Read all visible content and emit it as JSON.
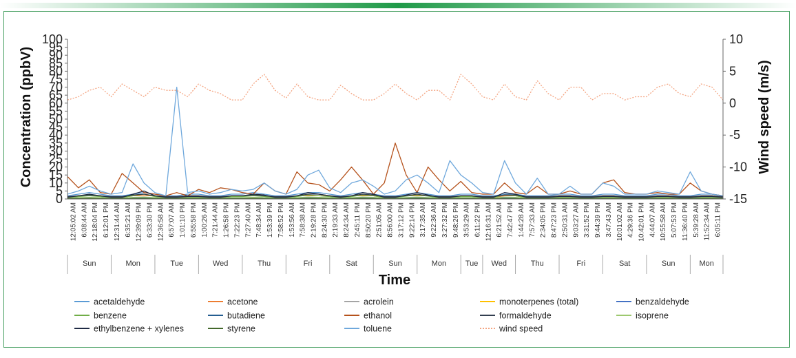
{
  "colors": {
    "frame": "#49a163",
    "bar_green": "#1f9a48",
    "acetaldehyde": "#5b9bd5",
    "acetone": "#ed7d31",
    "acrolein": "#a5a5a5",
    "monoterpenes": "#ffc000",
    "benzaldehyde": "#4472c4",
    "benzene": "#70ad47",
    "butadiene": "#255e91",
    "ethanol": "#b5521c",
    "formaldehyde": "#333f50",
    "isoprene": "#9dc86f",
    "ethylbenzene_xylenes": "#1f2a44",
    "styrene": "#43682b",
    "toluene": "#6fa8dc",
    "wind_speed": "#f4a582"
  },
  "chart_data": {
    "type": "line",
    "xlabel": "Time",
    "ylabel_left": "Concentration (ppbV)",
    "ylabel_right": "Wind speed (m/s)",
    "ylim_left": [
      0,
      100
    ],
    "ylim_right": [
      -15,
      10
    ],
    "yticks_left": [
      "0",
      "5",
      "10",
      "15",
      "20",
      "25",
      "30",
      "35",
      "40",
      "45",
      "50",
      "55",
      "60",
      "65",
      "70",
      "75",
      "80",
      "85",
      "90",
      "95",
      "100"
    ],
    "yticks_right": [
      "-15",
      "-10",
      "-5",
      "0",
      "5",
      "10"
    ],
    "x_tick_labels": [
      "12:05:02 AM",
      "6:08:44 AM",
      "12:18:04 PM",
      "6:12:01 PM",
      "12:31:44 AM",
      "6:35:21 AM",
      "12:39:09 PM",
      "6:33:30 PM",
      "12:36:58 AM",
      "6:57:07 AM",
      "1:01:10 PM",
      "6:55:58 PM",
      "1:00:26 AM",
      "7:21:44 AM",
      "1:26:58 PM",
      "7:22:23 PM",
      "7:27:40 AM",
      "7:48:34 AM",
      "1:53:39 PM",
      "7:58:52 PM",
      "1:53:56 AM",
      "7:58:38 AM",
      "2:19:28 PM",
      "8:24:30 PM",
      "2:19:33 AM",
      "8:24:34 AM",
      "2:45:11 PM",
      "8:50:20 PM",
      "2:51:05 AM",
      "8:56:00 AM",
      "3:17:12 PM",
      "9:22:14 PM",
      "3:17:35 AM",
      "9:22:36 AM",
      "3:27:32 PM",
      "9:48:26 PM",
      "3:53:29 AM",
      "6:11:22 PM",
      "12:16:31 AM",
      "6:21:52 AM",
      "7:42:47 PM",
      "1:44:28 AM",
      "7:57:33 AM",
      "2:34:05 PM",
      "8:47:23 PM",
      "2:50:31 AM",
      "9:03:27 AM",
      "3:31:52 PM",
      "9:44:39 PM",
      "3:47:43 AM",
      "10:01:02 AM",
      "4:29:36 PM",
      "10:42:01 PM",
      "4:44:07 AM",
      "10:55:58 AM",
      "5:07:53 PM",
      "11:36:40 PM",
      "5:39:28 AM",
      "11:52:34 AM",
      "6:05:11 PM"
    ],
    "day_labels": [
      "Sun",
      "Mon",
      "Tue",
      "Wed",
      "Thu",
      "Fri",
      "Sat",
      "Sun",
      "Mon",
      "Tue",
      "Wed",
      "Thu",
      "Fri",
      "Sat",
      "Sun",
      "Mon"
    ],
    "day_boundaries": [
      0,
      4,
      8,
      12,
      16,
      20,
      24,
      28,
      32,
      36,
      38,
      41,
      45,
      49,
      53,
      57,
      60
    ],
    "series": [
      {
        "name": "acetaldehyde",
        "color_key": "acetaldehyde",
        "values": [
          2,
          3,
          4,
          3,
          2,
          2,
          3,
          4,
          3,
          2,
          2,
          3,
          3,
          2,
          2,
          3,
          3,
          4,
          3,
          2,
          2,
          3,
          4,
          4,
          3,
          2,
          3,
          4,
          3,
          2,
          2,
          3,
          4,
          3,
          2,
          2,
          3,
          3,
          2,
          2,
          3,
          3,
          2,
          2,
          2,
          3,
          3,
          2,
          2,
          3,
          3,
          2,
          2,
          2,
          3,
          3,
          2,
          2,
          3,
          3,
          2
        ]
      },
      {
        "name": "acetone",
        "color_key": "acetone",
        "values": [
          1,
          2,
          2,
          2,
          1,
          1,
          2,
          2,
          2,
          1,
          1,
          2,
          2,
          1,
          1,
          2,
          2,
          2,
          2,
          1,
          1,
          2,
          2,
          2,
          2,
          1,
          2,
          2,
          2,
          1,
          1,
          2,
          2,
          2,
          1,
          1,
          2,
          2,
          1,
          1,
          2,
          2,
          1,
          1,
          1,
          2,
          2,
          1,
          1,
          2,
          2,
          1,
          1,
          1,
          2,
          2,
          1,
          1,
          2,
          2,
          1
        ]
      },
      {
        "name": "acrolein",
        "color_key": "acrolein",
        "values": [
          0.5,
          0.6,
          0.7,
          0.6,
          0.5,
          0.5,
          0.6,
          0.7,
          0.6,
          0.5,
          0.5,
          0.6,
          0.6,
          0.5,
          0.5,
          0.6,
          0.6,
          0.7,
          0.6,
          0.5,
          0.5,
          0.6,
          0.7,
          0.7,
          0.6,
          0.5,
          0.6,
          0.7,
          0.6,
          0.5,
          0.5,
          0.6,
          0.7,
          0.6,
          0.5,
          0.5,
          0.6,
          0.6,
          0.5,
          0.5,
          0.6,
          0.6,
          0.5,
          0.5,
          0.5,
          0.6,
          0.6,
          0.5,
          0.5,
          0.6,
          0.6,
          0.5,
          0.5,
          0.5,
          0.6,
          0.6,
          0.5,
          0.5,
          0.6,
          0.6,
          0.5
        ]
      },
      {
        "name": "monoterpenes (total)",
        "color_key": "monoterpenes",
        "values": [
          0.3,
          0.3,
          0.4,
          0.3,
          0.3,
          0.3,
          0.3,
          0.4,
          0.3,
          0.3,
          0.3,
          0.3,
          0.3,
          0.3,
          0.3,
          0.3,
          0.3,
          0.4,
          0.3,
          0.3,
          0.3,
          0.3,
          0.4,
          0.4,
          0.3,
          0.3,
          0.3,
          0.4,
          0.3,
          0.3,
          0.3,
          0.3,
          0.4,
          0.3,
          0.3,
          0.3,
          0.3,
          0.3,
          0.3,
          0.3,
          0.3,
          0.3,
          0.3,
          0.3,
          0.3,
          0.3,
          0.3,
          0.3,
          0.3,
          0.3,
          0.3,
          0.3,
          0.3,
          0.3,
          0.3,
          0.3,
          0.3,
          0.3,
          0.3,
          0.3,
          0.3
        ]
      },
      {
        "name": "benzaldehyde",
        "color_key": "benzaldehyde",
        "values": [
          0.6,
          0.7,
          0.9,
          0.7,
          0.6,
          0.6,
          0.8,
          0.9,
          0.7,
          0.6,
          0.6,
          0.7,
          0.7,
          0.6,
          0.6,
          0.7,
          0.7,
          0.9,
          0.8,
          0.6,
          0.6,
          0.7,
          0.9,
          0.9,
          0.7,
          0.6,
          0.7,
          0.9,
          0.8,
          0.6,
          0.6,
          0.7,
          0.9,
          0.7,
          0.6,
          0.6,
          0.7,
          0.7,
          0.6,
          0.6,
          0.7,
          0.7,
          0.6,
          0.6,
          0.6,
          0.7,
          0.7,
          0.6,
          0.6,
          0.7,
          0.7,
          0.6,
          0.6,
          0.6,
          0.7,
          0.7,
          0.6,
          0.6,
          0.7,
          0.7,
          0.6
        ]
      },
      {
        "name": "benzene",
        "color_key": "benzene",
        "values": [
          0.8,
          1.5,
          2,
          1.5,
          0.8,
          1,
          2,
          3,
          1.5,
          0.8,
          0.8,
          1.2,
          1.2,
          0.8,
          0.8,
          1.5,
          1.5,
          2,
          1.6,
          0.8,
          0.8,
          1.5,
          2.5,
          2,
          1.5,
          0.8,
          1.5,
          2.5,
          2,
          0.8,
          1,
          1.8,
          2.5,
          1.8,
          0.8,
          0.8,
          1.5,
          1.5,
          0.8,
          1,
          2.5,
          2,
          0.8,
          0.8,
          0.8,
          1.2,
          1.2,
          0.8,
          0.8,
          1.2,
          1.2,
          0.8,
          0.8,
          0.8,
          1.2,
          1.2,
          0.8,
          0.8,
          1.2,
          1.2,
          0.8
        ]
      },
      {
        "name": "butadiene",
        "color_key": "butadiene",
        "values": [
          0.3,
          0.4,
          0.5,
          0.4,
          0.3,
          0.3,
          0.4,
          0.5,
          0.4,
          0.3,
          0.3,
          0.4,
          0.4,
          0.3,
          0.3,
          0.4,
          0.4,
          0.5,
          0.4,
          0.3,
          0.3,
          0.4,
          0.5,
          0.5,
          0.4,
          0.3,
          0.4,
          0.5,
          0.4,
          0.3,
          0.3,
          0.4,
          0.5,
          0.4,
          0.3,
          0.3,
          0.4,
          0.4,
          0.3,
          0.3,
          0.4,
          0.4,
          0.3,
          0.3,
          0.3,
          0.4,
          0.4,
          0.3,
          0.3,
          0.4,
          0.4,
          0.3,
          0.3,
          0.3,
          0.4,
          0.4,
          0.3,
          0.3,
          0.4,
          0.4,
          0.3
        ]
      },
      {
        "name": "ethanol",
        "color_key": "ethanol",
        "values": [
          14,
          7,
          12,
          4,
          3,
          16,
          10,
          4,
          3,
          2,
          4,
          2,
          6,
          4,
          7,
          6,
          4,
          3,
          10,
          5,
          3,
          17,
          10,
          9,
          5,
          12,
          20,
          12,
          3,
          10,
          35,
          15,
          4,
          20,
          12,
          5,
          11,
          4,
          3,
          3,
          10,
          4,
          3,
          8,
          3,
          3,
          5,
          3,
          3,
          10,
          12,
          4,
          3,
          3,
          4,
          3,
          3,
          10,
          5,
          3,
          2
        ]
      },
      {
        "name": "formaldehyde",
        "color_key": "formaldehyde",
        "values": [
          1.5,
          2,
          2.5,
          2,
          1.5,
          1.5,
          2.5,
          3,
          2,
          1.5,
          1.5,
          2,
          2,
          1.5,
          1.5,
          2,
          2,
          2.5,
          2,
          1.5,
          1.5,
          2,
          3,
          3,
          2,
          1.5,
          2,
          3,
          2.5,
          1.5,
          1.5,
          2,
          3,
          2,
          1.5,
          1.5,
          2,
          2,
          1.5,
          1.5,
          2.5,
          2.5,
          1.5,
          1.5,
          1.5,
          2,
          2,
          1.5,
          1.5,
          2,
          2,
          1.5,
          1.5,
          1.5,
          2,
          2,
          1.5,
          1.5,
          2,
          2,
          1.5
        ]
      },
      {
        "name": "isoprene",
        "color_key": "isoprene",
        "values": [
          0.5,
          0.8,
          1,
          0.8,
          0.5,
          0.5,
          1,
          1.2,
          0.8,
          0.5,
          0.5,
          0.7,
          0.7,
          0.5,
          0.5,
          0.8,
          0.8,
          1,
          0.8,
          0.5,
          0.5,
          0.8,
          1.2,
          1,
          0.8,
          0.5,
          0.8,
          1.2,
          1,
          0.5,
          0.5,
          0.9,
          1.2,
          0.9,
          0.5,
          0.5,
          0.8,
          0.8,
          0.5,
          0.5,
          1.2,
          1,
          0.5,
          0.5,
          0.5,
          0.7,
          0.7,
          0.5,
          0.5,
          0.7,
          0.7,
          0.5,
          0.5,
          0.5,
          0.7,
          0.7,
          0.5,
          0.5,
          0.7,
          0.7,
          0.5
        ]
      },
      {
        "name": "ethylbenzene + xylenes",
        "color_key": "ethylbenzene_xylenes",
        "values": [
          1,
          2,
          3,
          2,
          1,
          1,
          3,
          5,
          2,
          1,
          1,
          1.5,
          1.5,
          1,
          1,
          2,
          2,
          3,
          2.5,
          1,
          1,
          2,
          4,
          3,
          2,
          1,
          2,
          4,
          3,
          1,
          1,
          2.5,
          4,
          2.5,
          1,
          1,
          2,
          2,
          1,
          1,
          4,
          3,
          1,
          1,
          1,
          1.5,
          1.5,
          1,
          1,
          1.5,
          1.5,
          1,
          1,
          1,
          1.5,
          1.5,
          1,
          1,
          1.5,
          1.5,
          1
        ]
      },
      {
        "name": "styrene",
        "color_key": "styrene",
        "values": [
          0.2,
          0.3,
          0.4,
          0.3,
          0.2,
          0.2,
          0.3,
          0.4,
          0.3,
          0.2,
          0.2,
          0.3,
          0.3,
          0.2,
          0.2,
          0.3,
          0.3,
          0.4,
          0.3,
          0.2,
          0.2,
          0.3,
          0.4,
          0.4,
          0.3,
          0.2,
          0.3,
          0.4,
          0.3,
          0.2,
          0.2,
          0.3,
          0.4,
          0.3,
          0.2,
          0.2,
          0.3,
          0.3,
          0.2,
          0.2,
          0.3,
          0.3,
          0.2,
          0.2,
          0.2,
          0.3,
          0.3,
          0.2,
          0.2,
          0.3,
          0.3,
          0.2,
          0.2,
          0.2,
          0.3,
          0.3,
          0.2,
          0.2,
          0.3,
          0.3,
          0.2
        ]
      },
      {
        "name": "toluene",
        "color_key": "toluene",
        "values": [
          3,
          5,
          8,
          5,
          3,
          4,
          22,
          10,
          4,
          2,
          70,
          4,
          5,
          3,
          4,
          6,
          5,
          6,
          10,
          5,
          3,
          6,
          15,
          18,
          7,
          4,
          10,
          12,
          8,
          3,
          5,
          12,
          15,
          10,
          4,
          24,
          15,
          10,
          4,
          3,
          24,
          10,
          3,
          13,
          3,
          3,
          8,
          3,
          3,
          10,
          8,
          3,
          3,
          3,
          5,
          4,
          3,
          17,
          5,
          3,
          2
        ]
      },
      {
        "name": "wind speed",
        "color_key": "wind_speed",
        "axis": "right",
        "values": [
          0.5,
          1.0,
          2.0,
          2.5,
          1.0,
          3.0,
          2.0,
          1.0,
          2.5,
          2.0,
          2.0,
          1.0,
          3.0,
          2.0,
          1.5,
          0.5,
          0.5,
          3.0,
          4.5,
          2.0,
          0.8,
          3.0,
          1.0,
          0.5,
          0.5,
          2.8,
          1.5,
          0.5,
          0.5,
          1.5,
          3.0,
          1.5,
          0.5,
          2.0,
          2.0,
          0.5,
          4.5,
          3.0,
          1.0,
          0.5,
          3.0,
          1.0,
          0.5,
          3.5,
          1.5,
          0.5,
          2.5,
          2.5,
          0.5,
          1.5,
          1.5,
          0.5,
          1.0,
          1.0,
          2.5,
          3.0,
          1.5,
          1.0,
          3.0,
          2.5,
          0.5
        ]
      }
    ],
    "legend": [
      "acetaldehyde",
      "acetone",
      "acrolein",
      "monoterpenes (total)",
      "benzaldehyde",
      "benzene",
      "butadiene",
      "ethanol",
      "formaldehyde",
      "isoprene",
      "ethylbenzene + xylenes",
      "styrene",
      "toluene",
      "wind speed"
    ]
  }
}
